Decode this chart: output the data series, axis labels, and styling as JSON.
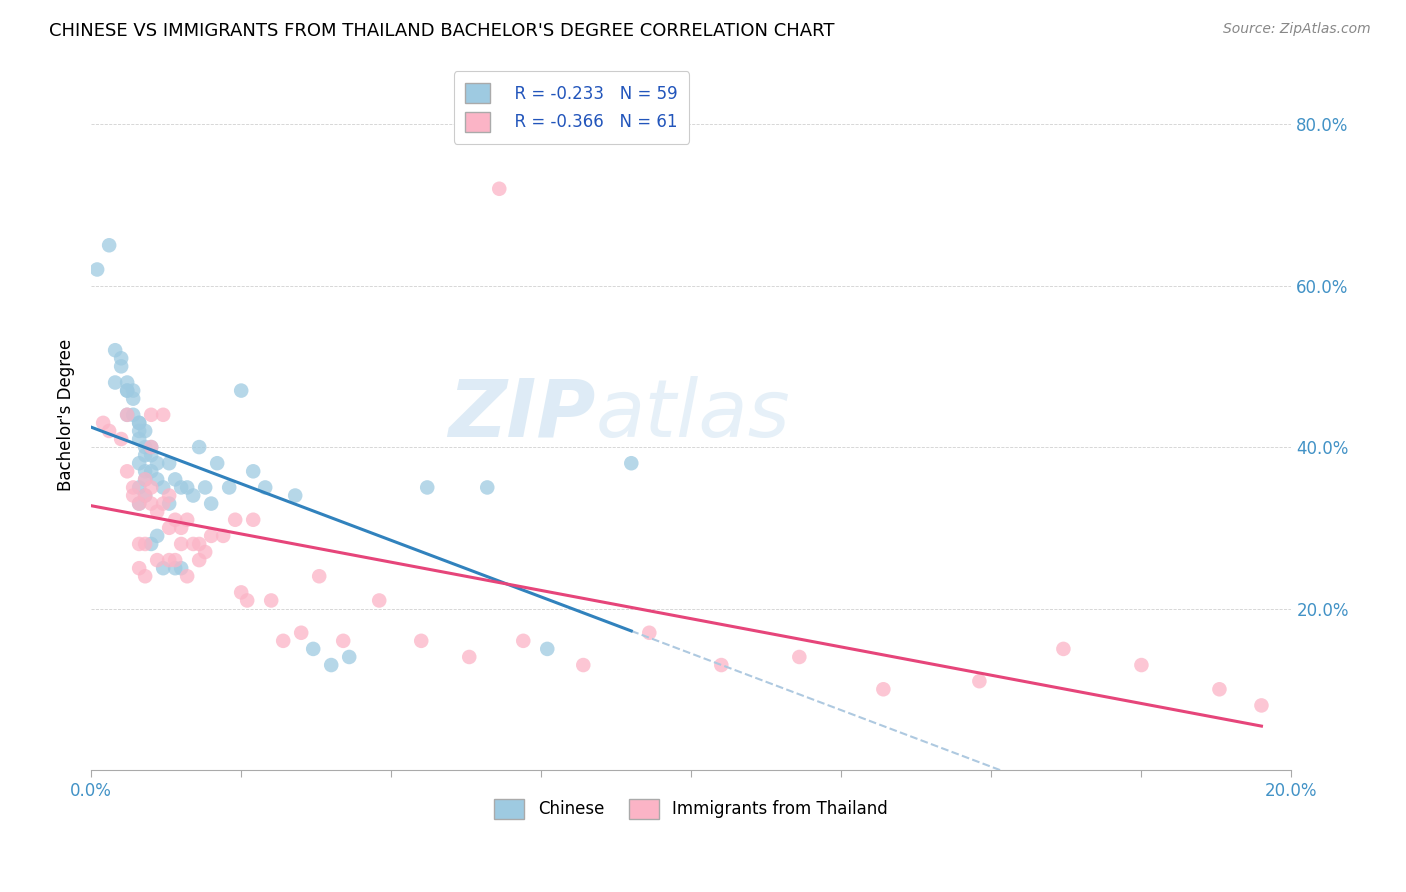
{
  "title": "CHINESE VS IMMIGRANTS FROM THAILAND BACHELOR'S DEGREE CORRELATION CHART",
  "source": "Source: ZipAtlas.com",
  "ylabel": "Bachelor's Degree",
  "yticks": [
    0.0,
    0.2,
    0.4,
    0.6,
    0.8
  ],
  "ytick_labels_right": [
    "",
    "20.0%",
    "40.0%",
    "60.0%",
    "80.0%"
  ],
  "xlim": [
    0.0,
    0.2
  ],
  "ylim": [
    0.0,
    0.88
  ],
  "legend_r1": "R = -0.233",
  "legend_n1": "N = 59",
  "legend_r2": "R = -0.366",
  "legend_n2": "N = 61",
  "color_chinese": "#9ecae1",
  "color_thai": "#fbb4c6",
  "color_trendline_chinese": "#3182bd",
  "color_trendline_thai": "#e6457a",
  "color_trendline_ext": "#aec9e0",
  "chinese_x": [
    0.001,
    0.003,
    0.004,
    0.004,
    0.005,
    0.005,
    0.006,
    0.006,
    0.006,
    0.006,
    0.007,
    0.007,
    0.007,
    0.008,
    0.008,
    0.008,
    0.008,
    0.008,
    0.008,
    0.008,
    0.009,
    0.009,
    0.009,
    0.009,
    0.009,
    0.009,
    0.01,
    0.01,
    0.01,
    0.01,
    0.011,
    0.011,
    0.011,
    0.012,
    0.012,
    0.013,
    0.013,
    0.014,
    0.014,
    0.015,
    0.015,
    0.016,
    0.017,
    0.018,
    0.019,
    0.02,
    0.021,
    0.023,
    0.025,
    0.027,
    0.029,
    0.034,
    0.037,
    0.04,
    0.043,
    0.056,
    0.066,
    0.076,
    0.09
  ],
  "chinese_y": [
    0.62,
    0.65,
    0.52,
    0.48,
    0.51,
    0.5,
    0.48,
    0.47,
    0.47,
    0.44,
    0.47,
    0.46,
    0.44,
    0.43,
    0.43,
    0.42,
    0.41,
    0.38,
    0.35,
    0.33,
    0.42,
    0.4,
    0.39,
    0.37,
    0.36,
    0.34,
    0.4,
    0.39,
    0.37,
    0.28,
    0.38,
    0.36,
    0.29,
    0.35,
    0.25,
    0.38,
    0.33,
    0.36,
    0.25,
    0.35,
    0.25,
    0.35,
    0.34,
    0.4,
    0.35,
    0.33,
    0.38,
    0.35,
    0.47,
    0.37,
    0.35,
    0.34,
    0.15,
    0.13,
    0.14,
    0.35,
    0.35,
    0.15,
    0.38
  ],
  "thai_x": [
    0.002,
    0.003,
    0.005,
    0.006,
    0.006,
    0.007,
    0.007,
    0.008,
    0.008,
    0.008,
    0.009,
    0.009,
    0.009,
    0.009,
    0.01,
    0.01,
    0.01,
    0.01,
    0.011,
    0.011,
    0.012,
    0.012,
    0.013,
    0.013,
    0.013,
    0.014,
    0.014,
    0.015,
    0.015,
    0.016,
    0.016,
    0.017,
    0.018,
    0.018,
    0.019,
    0.02,
    0.022,
    0.024,
    0.025,
    0.026,
    0.027,
    0.03,
    0.032,
    0.035,
    0.038,
    0.042,
    0.048,
    0.055,
    0.063,
    0.072,
    0.082,
    0.093,
    0.105,
    0.118,
    0.132,
    0.148,
    0.162,
    0.175,
    0.188,
    0.195,
    0.068
  ],
  "thai_y": [
    0.43,
    0.42,
    0.41,
    0.44,
    0.37,
    0.35,
    0.34,
    0.33,
    0.28,
    0.25,
    0.36,
    0.34,
    0.28,
    0.24,
    0.44,
    0.4,
    0.35,
    0.33,
    0.32,
    0.26,
    0.44,
    0.33,
    0.34,
    0.3,
    0.26,
    0.31,
    0.26,
    0.3,
    0.28,
    0.31,
    0.24,
    0.28,
    0.28,
    0.26,
    0.27,
    0.29,
    0.29,
    0.31,
    0.22,
    0.21,
    0.31,
    0.21,
    0.16,
    0.17,
    0.24,
    0.16,
    0.21,
    0.16,
    0.14,
    0.16,
    0.13,
    0.17,
    0.13,
    0.14,
    0.1,
    0.11,
    0.15,
    0.13,
    0.1,
    0.08,
    0.72
  ],
  "chinese_trend_x0": 0.0,
  "chinese_trend_x1": 0.09,
  "thai_trend_solid_x0": 0.0,
  "thai_trend_solid_x1": 0.195,
  "thai_trend_dash_x0": 0.09,
  "thai_trend_dash_x1": 0.2
}
